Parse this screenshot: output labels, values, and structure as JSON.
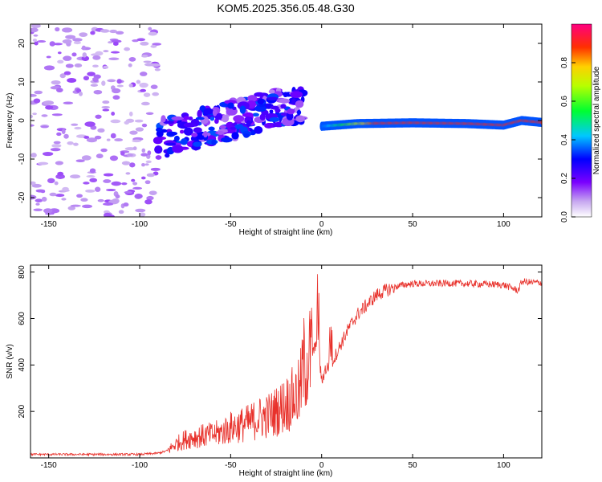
{
  "title": "KOM5.2025.356.05.48.G30",
  "chart_data": [
    {
      "type": "heatmap",
      "name": "spectrogram",
      "xlabel": "Height of straight line (km)",
      "ylabel": "Frequency (Hz)",
      "xlim": [
        -160,
        121
      ],
      "ylim": [
        -25,
        25
      ],
      "xticks": [
        -150,
        -100,
        -50,
        0,
        50,
        100
      ],
      "yticks": [
        -20,
        -10,
        0,
        10,
        20
      ],
      "colorbar": {
        "label": "Normalized spectral amplitude",
        "range": [
          0,
          1
        ],
        "ticks": [
          0.0,
          0.2,
          0.4,
          0.6,
          0.8
        ]
      },
      "features": [
        {
          "description": "scattered noise",
          "x_range": [
            -160,
            -90
          ],
          "freq_range": [
            -25,
            25
          ],
          "amplitude": 0.1
        },
        {
          "description": "diffuse signal cluster",
          "x_range": [
            -90,
            -10
          ],
          "freq_range": [
            -12,
            10
          ],
          "amplitude": 0.2
        },
        {
          "description": "tracked carrier line",
          "x_range": [
            0,
            121
          ],
          "freq": [
            [
              0,
              -1.5
            ],
            [
              20,
              -0.8
            ],
            [
              50,
              -0.6
            ],
            [
              80,
              -0.8
            ],
            [
              100,
              -1.2
            ],
            [
              110,
              0
            ],
            [
              121,
              -0.5
            ]
          ],
          "amplitude": 0.9
        }
      ]
    },
    {
      "type": "line",
      "name": "snr",
      "xlabel": "Height of straight line (km)",
      "ylabel": "SNR (v/v)",
      "xlim": [
        -160,
        121
      ],
      "ylim": [
        0,
        830
      ],
      "xticks": [
        -150,
        -100,
        -50,
        0,
        50,
        100
      ],
      "yticks": [
        200,
        400,
        600,
        800
      ],
      "series": [
        {
          "name": "SNR",
          "color": "#e8312b",
          "x": [
            -160,
            -140,
            -120,
            -100,
            -90,
            -85,
            -80,
            -75,
            -70,
            -65,
            -60,
            -55,
            -50,
            -45,
            -40,
            -35,
            -30,
            -25,
            -20,
            -15,
            -12,
            -10,
            -8,
            -6,
            -4,
            -2,
            0,
            2,
            5,
            10,
            15,
            20,
            25,
            30,
            35,
            40,
            45,
            50,
            60,
            70,
            80,
            90,
            100,
            105,
            108,
            110,
            115,
            121
          ],
          "values": [
            15,
            15,
            15,
            15,
            20,
            30,
            60,
            80,
            90,
            95,
            100,
            110,
            130,
            140,
            150,
            170,
            180,
            200,
            230,
            260,
            280,
            400,
            420,
            440,
            470,
            480,
            330,
            380,
            400,
            480,
            560,
            620,
            660,
            700,
            720,
            735,
            745,
            750,
            750,
            752,
            750,
            748,
            745,
            730,
            720,
            760,
            755,
            755
          ]
        }
      ]
    }
  ]
}
